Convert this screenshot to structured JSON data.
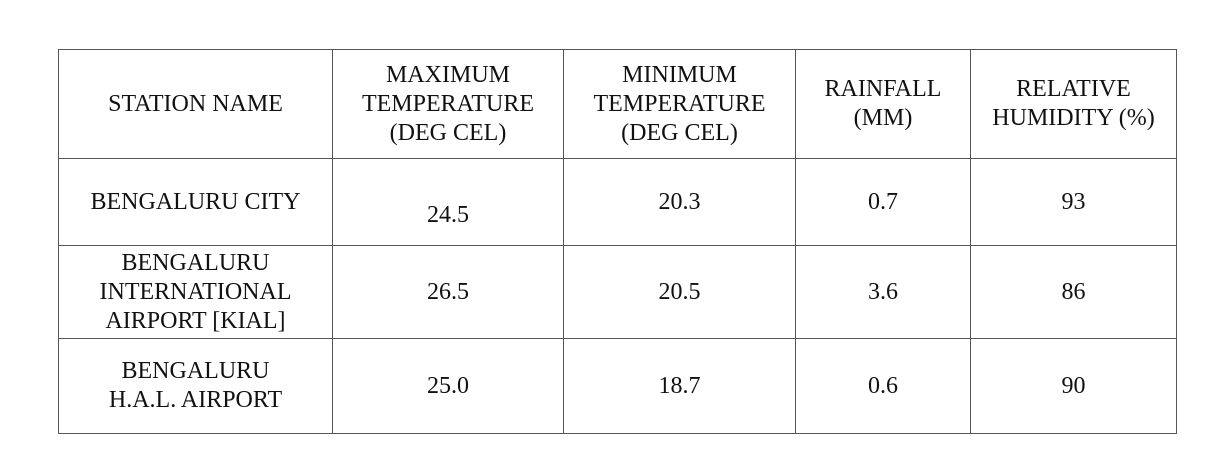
{
  "table": {
    "headers": [
      "STATION NAME",
      "MAXIMUM\nTEMPERATURE\n(DEG CEL)",
      "MINIMUM\nTEMPERATURE\n(DEG CEL)",
      "RAINFALL\n(MM)",
      "RELATIVE\nHUMIDITY (%)"
    ],
    "rows": [
      [
        "BENGALURU CITY",
        "24.5",
        "20.3",
        "0.7",
        "93"
      ],
      [
        "BENGALURU\nINTERNATIONAL\nAIRPORT [KIAL]",
        "26.5",
        "20.5",
        "3.6",
        "86"
      ],
      [
        "BENGALURU\nH.A.L. AIRPORT",
        "25.0",
        "18.7",
        "0.6",
        "90"
      ]
    ]
  }
}
